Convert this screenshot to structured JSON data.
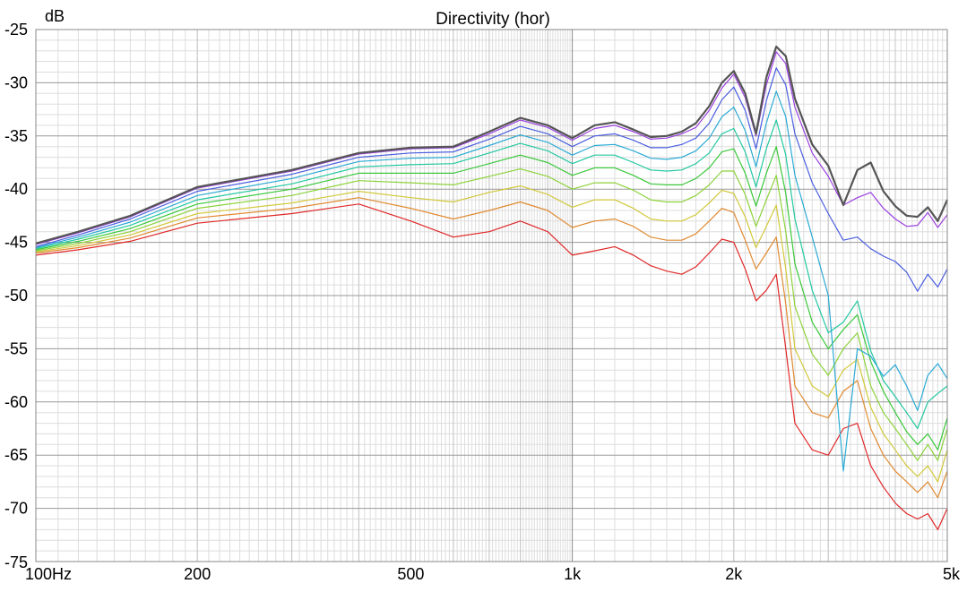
{
  "chart_data": {
    "type": "line",
    "title": "Directivity (hor)",
    "ylabel": "dB",
    "xlabel": "",
    "x_scale": "log",
    "xlim": [
      100,
      5000
    ],
    "ylim": [
      -75,
      -25
    ],
    "grid": true,
    "legend": "none",
    "x_ticks": [
      {
        "value": 100,
        "label": "100Hz"
      },
      {
        "value": 200,
        "label": "200"
      },
      {
        "value": 500,
        "label": "500"
      },
      {
        "value": 1000,
        "label": "1k"
      },
      {
        "value": 2000,
        "label": "2k"
      },
      {
        "value": 5000,
        "label": "5k"
      }
    ],
    "y_ticks": [
      {
        "value": -25,
        "label": "-25"
      },
      {
        "value": -30,
        "label": "-30"
      },
      {
        "value": -35,
        "label": "-35"
      },
      {
        "value": -40,
        "label": "-40"
      },
      {
        "value": -45,
        "label": "-45"
      },
      {
        "value": -50,
        "label": "-50"
      },
      {
        "value": -55,
        "label": "-55"
      },
      {
        "value": -60,
        "label": "-60"
      },
      {
        "value": -65,
        "label": "-65"
      },
      {
        "value": -70,
        "label": "-70"
      },
      {
        "value": -75,
        "label": "-75"
      }
    ],
    "x": [
      100,
      120,
      150,
      200,
      300,
      400,
      500,
      600,
      700,
      800,
      900,
      1000,
      1100,
      1200,
      1300,
      1400,
      1500,
      1600,
      1700,
      1800,
      1900,
      2000,
      2100,
      2200,
      2300,
      2400,
      2500,
      2600,
      2800,
      3000,
      3200,
      3400,
      3600,
      3800,
      4000,
      4200,
      4400,
      4600,
      4800,
      5000
    ],
    "series": [
      {
        "color": "#555555",
        "width": 2.2,
        "values": [
          -45.1,
          -44.0,
          -42.5,
          -39.8,
          -38.2,
          -36.6,
          -36.1,
          -36.0,
          -34.6,
          -33.3,
          -34.0,
          -35.2,
          -34.0,
          -33.7,
          -34.4,
          -35.1,
          -35.0,
          -34.6,
          -33.8,
          -32.2,
          -30.0,
          -28.9,
          -31.0,
          -34.8,
          -29.5,
          -26.6,
          -27.5,
          -31.5,
          -35.8,
          -37.8,
          -41.5,
          -38.2,
          -37.5,
          -40.2,
          -41.6,
          -42.5,
          -42.6,
          -41.7,
          -43.0,
          -41.0
        ]
      },
      {
        "color": "#9b40e0",
        "width": 1.2,
        "values": [
          -45.2,
          -44.1,
          -42.6,
          -39.9,
          -38.3,
          -36.7,
          -36.2,
          -36.1,
          -34.8,
          -33.5,
          -34.2,
          -35.4,
          -34.3,
          -34.0,
          -34.6,
          -35.3,
          -35.2,
          -34.8,
          -34.2,
          -32.6,
          -30.5,
          -29.2,
          -31.4,
          -35.0,
          -30.2,
          -27.1,
          -28.2,
          -32.3,
          -36.6,
          -38.8,
          -41.5,
          -40.8,
          -40.3,
          -41.8,
          -42.8,
          -43.5,
          -43.4,
          -42.2,
          -43.6,
          -42.4
        ]
      },
      {
        "color": "#4a5ee0",
        "width": 1.2,
        "values": [
          -45.4,
          -44.3,
          -42.8,
          -40.2,
          -38.6,
          -37.0,
          -36.6,
          -36.5,
          -35.3,
          -34.1,
          -34.8,
          -36.0,
          -35.0,
          -34.8,
          -35.4,
          -36.1,
          -36.1,
          -35.8,
          -35.2,
          -33.8,
          -31.6,
          -30.4,
          -32.6,
          -36.2,
          -31.7,
          -28.6,
          -30.2,
          -34.8,
          -39.4,
          -42.3,
          -44.8,
          -44.5,
          -45.6,
          -46.3,
          -46.8,
          -47.8,
          -49.6,
          -48.0,
          -49.2,
          -47.5
        ]
      },
      {
        "color": "#2aaad4",
        "width": 1.2,
        "values": [
          -45.5,
          -44.5,
          -43.1,
          -40.6,
          -39.0,
          -37.4,
          -37.1,
          -37.0,
          -35.9,
          -34.9,
          -35.6,
          -36.8,
          -35.9,
          -35.8,
          -36.4,
          -37.1,
          -37.2,
          -37.0,
          -36.4,
          -35.2,
          -33.2,
          -32.3,
          -34.5,
          -37.9,
          -33.8,
          -30.8,
          -33.2,
          -38.7,
          -44.5,
          -50.0,
          -66.5,
          -55.0,
          -55.7,
          -57.6,
          -56.5,
          -58.5,
          -60.8,
          -57.5,
          -56.4,
          -57.8
        ]
      },
      {
        "color": "#22c8a0",
        "width": 1.2,
        "values": [
          -45.6,
          -44.7,
          -43.4,
          -41.0,
          -39.5,
          -37.9,
          -37.7,
          -37.6,
          -36.6,
          -35.7,
          -36.4,
          -37.6,
          -36.8,
          -36.8,
          -37.5,
          -38.2,
          -38.3,
          -38.2,
          -37.6,
          -36.6,
          -34.8,
          -34.3,
          -36.5,
          -39.8,
          -36.2,
          -33.5,
          -36.8,
          -42.8,
          -49.5,
          -53.5,
          -52.5,
          -50.5,
          -55.2,
          -58.0,
          -59.5,
          -61.0,
          -62.5,
          -60.0,
          -59.2,
          -58.5
        ]
      },
      {
        "color": "#3ac83a",
        "width": 1.2,
        "values": [
          -45.7,
          -44.9,
          -43.7,
          -41.4,
          -40.0,
          -38.5,
          -38.5,
          -38.5,
          -37.6,
          -36.8,
          -37.5,
          -38.7,
          -38.0,
          -38.0,
          -38.7,
          -39.5,
          -39.6,
          -39.6,
          -39.0,
          -38.0,
          -36.5,
          -36.2,
          -38.5,
          -41.6,
          -38.5,
          -36.0,
          -40.4,
          -47.0,
          -52.5,
          -55.0,
          -53.2,
          -51.8,
          -56.2,
          -59.0,
          -61.0,
          -62.8,
          -64.0,
          -63.0,
          -64.5,
          -61.5
        ]
      },
      {
        "color": "#8cd23a",
        "width": 1.2,
        "values": [
          -45.8,
          -45.1,
          -44.0,
          -41.8,
          -40.6,
          -39.2,
          -39.4,
          -39.6,
          -38.8,
          -38.1,
          -38.8,
          -40.0,
          -39.4,
          -39.4,
          -40.1,
          -41.0,
          -41.2,
          -41.2,
          -40.6,
          -39.6,
          -38.3,
          -38.3,
          -40.5,
          -43.5,
          -41.0,
          -38.7,
          -44.0,
          -51.0,
          -55.5,
          -57.5,
          -55.0,
          -53.5,
          -58.5,
          -61.0,
          -62.5,
          -64.0,
          -65.5,
          -64.0,
          -65.5,
          -62.5
        ]
      },
      {
        "color": "#d2c83a",
        "width": 1.2,
        "values": [
          -45.9,
          -45.3,
          -44.3,
          -42.3,
          -41.3,
          -40.2,
          -40.8,
          -41.2,
          -40.3,
          -39.7,
          -40.5,
          -41.7,
          -41.0,
          -41.0,
          -41.8,
          -42.8,
          -43.0,
          -43.0,
          -42.4,
          -41.3,
          -40.1,
          -40.4,
          -42.6,
          -45.5,
          -43.5,
          -41.5,
          -47.5,
          -55.0,
          -58.5,
          -59.5,
          -57.0,
          -56.0,
          -60.5,
          -63.0,
          -64.5,
          -66.0,
          -67.0,
          -66.0,
          -67.5,
          -64.5
        ]
      },
      {
        "color": "#e08a30",
        "width": 1.2,
        "values": [
          -46.0,
          -45.5,
          -44.6,
          -42.7,
          -41.8,
          -40.8,
          -41.8,
          -42.8,
          -42.0,
          -41.2,
          -42.0,
          -43.6,
          -43.0,
          -42.8,
          -43.5,
          -44.5,
          -44.8,
          -44.8,
          -44.2,
          -43.0,
          -41.8,
          -42.2,
          -44.8,
          -47.5,
          -46.0,
          -44.5,
          -50.8,
          -58.5,
          -61.0,
          -61.5,
          -59.0,
          -58.0,
          -62.5,
          -65.0,
          -66.5,
          -67.5,
          -68.5,
          -67.5,
          -69.0,
          -66.5
        ]
      },
      {
        "color": "#e02828",
        "width": 1.2,
        "values": [
          -46.2,
          -45.7,
          -44.9,
          -43.2,
          -42.3,
          -41.4,
          -43.0,
          -44.5,
          -44.0,
          -43.0,
          -44.0,
          -46.2,
          -45.8,
          -45.4,
          -46.2,
          -47.2,
          -47.7,
          -48.0,
          -47.3,
          -46.0,
          -44.7,
          -45.0,
          -47.5,
          -50.5,
          -49.5,
          -48.0,
          -55.0,
          -62.0,
          -64.5,
          -65.0,
          -62.5,
          -62.0,
          -66.0,
          -68.0,
          -69.5,
          -70.5,
          -71.0,
          -70.5,
          -72.0,
          -70.0
        ]
      }
    ]
  }
}
